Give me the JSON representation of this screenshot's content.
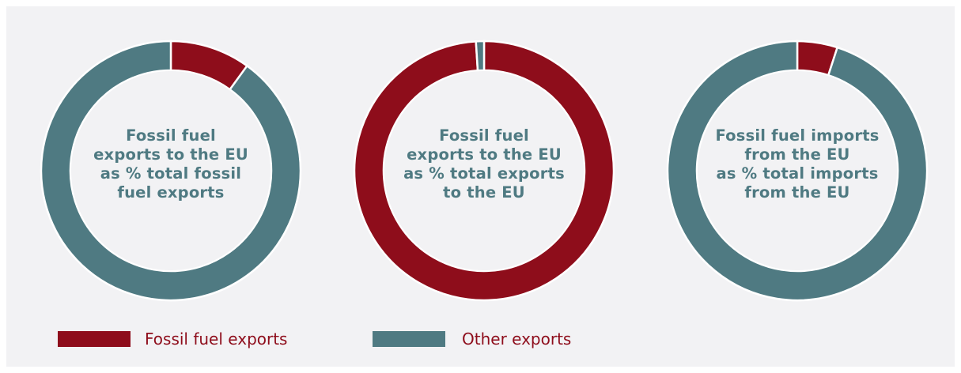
{
  "colors": {
    "fossil": "#8e0d1b",
    "other": "#4f7a82",
    "background": "#f2f2f4",
    "legend_text": "#8e0d1b",
    "label_text": "#4f7a82"
  },
  "legend": [
    {
      "label": "Fossil fuel exports",
      "color": "#8e0d1b"
    },
    {
      "label": "Other exports",
      "color": "#4f7a82"
    }
  ],
  "chart_data": [
    {
      "type": "pie",
      "subtype": "donut",
      "center_label": [
        "Fossil fuel",
        "exports to the EU",
        "as % total fossil",
        "fuel exports"
      ],
      "slices": [
        {
          "name": "Fossil fuel exports",
          "value": 10,
          "color": "#8e0d1b"
        },
        {
          "name": "Other exports",
          "value": 90,
          "color": "#4f7a82"
        }
      ]
    },
    {
      "type": "pie",
      "subtype": "donut",
      "center_label": [
        "Fossil fuel",
        "exports to the EU",
        "as % total exports",
        "to the EU"
      ],
      "slices": [
        {
          "name": "Fossil fuel exports",
          "value": 99,
          "color": "#8e0d1b"
        },
        {
          "name": "Other exports",
          "value": 1,
          "color": "#4f7a82"
        }
      ]
    },
    {
      "type": "pie",
      "subtype": "donut",
      "center_label": [
        "Fossil fuel imports",
        "from the EU",
        "as % total imports",
        "from the EU"
      ],
      "slices": [
        {
          "name": "Fossil fuel exports",
          "value": 5,
          "color": "#8e0d1b"
        },
        {
          "name": "Other exports",
          "value": 95,
          "color": "#4f7a82"
        }
      ]
    }
  ]
}
